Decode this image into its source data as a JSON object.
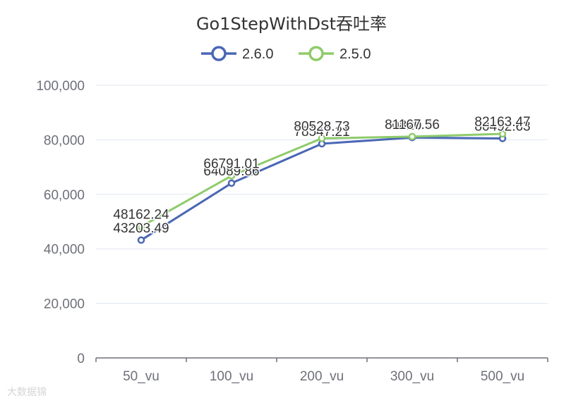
{
  "chart_data": {
    "type": "line",
    "title": "Go1StepWithDst吞吐率",
    "categories": [
      "50_vu",
      "100_vu",
      "200_vu",
      "300_vu",
      "500_vu"
    ],
    "ylim": [
      0,
      100000
    ],
    "yticks": [
      0,
      20000,
      40000,
      60000,
      80000,
      100000
    ],
    "ytick_labels": [
      "0",
      "20,000",
      "40,000",
      "60,000",
      "80,000",
      "100,000"
    ],
    "grid": true,
    "legend_placement": "top-center",
    "series": [
      {
        "name": "2.6.0",
        "color": "#4a67b5",
        "values": [
          43203.49,
          64089.86,
          78547.21,
          80820.45,
          80492.63
        ],
        "labels": [
          "43203.49",
          "64089.86",
          "78547.21",
          "80820.45",
          "80492.63"
        ]
      },
      {
        "name": "2.5.0",
        "color": "#8ecb6a",
        "values": [
          48162.24,
          66791.01,
          80528.73,
          81167.56,
          82163.47
        ],
        "labels": [
          "48162.24",
          "66791.01",
          "80528.73",
          "81167.56",
          "82163.47"
        ]
      }
    ]
  },
  "watermark": {
    "text": "大数据锦"
  }
}
